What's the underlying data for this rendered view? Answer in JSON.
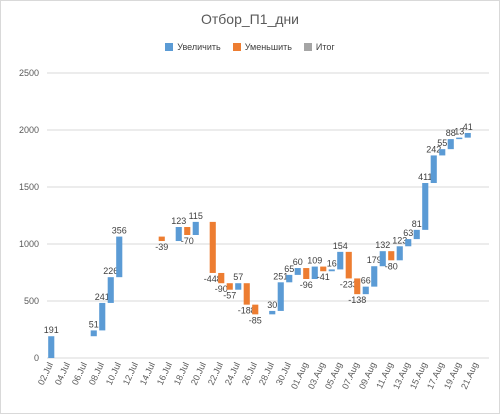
{
  "chart_data": {
    "type": "bar",
    "title": "Отбор_П1_дни",
    "legend": [
      {
        "name": "Увеличить",
        "color": "#5b9bd5"
      },
      {
        "name": "Уменьшить",
        "color": "#ed7d31"
      },
      {
        "name": "Итог",
        "color": "#a5a5a5"
      }
    ],
    "ylim": [
      0,
      2500
    ],
    "yticks": [
      "0",
      "500",
      "1000",
      "1500",
      "2000",
      "2500"
    ],
    "xticks": [
      "02.Jul",
      "04.Jul",
      "06.Jul",
      "08.Jul",
      "10.Jul",
      "12.Jul",
      "14.Jul",
      "16.Jul",
      "18.Jul",
      "20.Jul",
      "22.Jul",
      "24.Jul",
      "26.Jul",
      "28.Jul",
      "30.Jul",
      "01.Aug",
      "03.Aug",
      "05.Aug",
      "07.Aug",
      "09.Aug",
      "11.Aug",
      "13.Aug",
      "15.Aug",
      "17.Aug",
      "19.Aug",
      "21.Aug"
    ],
    "grid": true,
    "legend_position": "top",
    "steps": [
      {
        "x": 0,
        "value": 191,
        "label": "191"
      },
      {
        "x": 5.0,
        "value": 51,
        "label": "51"
      },
      {
        "x": 6.0,
        "value": 241,
        "label": "241"
      },
      {
        "x": 7.0,
        "value": 226,
        "label": "226"
      },
      {
        "x": 8.0,
        "value": 356,
        "label": "356"
      },
      {
        "x": 13.0,
        "value": -39,
        "label": "-39"
      },
      {
        "x": 15.0,
        "value": 123,
        "label": "123"
      },
      {
        "x": 16.0,
        "value": -70,
        "label": "-70"
      },
      {
        "x": 17.0,
        "value": 115,
        "label": "115"
      },
      {
        "x": 19.0,
        "value": -448,
        "label": "-448"
      },
      {
        "x": 20.0,
        "value": -90,
        "label": "-90"
      },
      {
        "x": 21.0,
        "value": -57,
        "label": "-57"
      },
      {
        "x": 22.0,
        "value": 57,
        "label": "57"
      },
      {
        "x": 23.0,
        "value": -188,
        "label": "-188"
      },
      {
        "x": 24.0,
        "value": -85,
        "label": "-85"
      },
      {
        "x": 26.0,
        "value": 30,
        "label": "30"
      },
      {
        "x": 27.0,
        "value": 251,
        "label": "251"
      },
      {
        "x": 28.0,
        "value": 65,
        "label": "65"
      },
      {
        "x": 29.0,
        "value": 60,
        "label": "60"
      },
      {
        "x": 30.0,
        "value": -96,
        "label": "-96"
      },
      {
        "x": 31.0,
        "value": 109,
        "label": "109"
      },
      {
        "x": 32.0,
        "value": -41,
        "label": "-41"
      },
      {
        "x": 33.0,
        "value": 16,
        "label": "16"
      },
      {
        "x": 34.0,
        "value": 154,
        "label": "154"
      },
      {
        "x": 35.0,
        "value": -233,
        "label": "-233"
      },
      {
        "x": 36.0,
        "value": -138,
        "label": "-138"
      },
      {
        "x": 37.0,
        "value": 66,
        "label": "66"
      },
      {
        "x": 38.0,
        "value": 179,
        "label": "179"
      },
      {
        "x": 39.0,
        "value": 132,
        "label": "132"
      },
      {
        "x": 40.0,
        "value": -80,
        "label": "-80"
      },
      {
        "x": 41.0,
        "value": 123,
        "label": "123"
      },
      {
        "x": 42.0,
        "value": 63,
        "label": "63"
      },
      {
        "x": 43.0,
        "value": 81,
        "label": "81"
      },
      {
        "x": 44.0,
        "value": 411,
        "label": "411"
      },
      {
        "x": 45.0,
        "value": 242,
        "label": "242"
      },
      {
        "x": 46.0,
        "value": 55,
        "label": "55"
      },
      {
        "x": 47.0,
        "value": 88,
        "label": "88"
      },
      {
        "x": 48.0,
        "value": 13,
        "label": "13"
      },
      {
        "x": 49.0,
        "value": 41,
        "label": "41"
      }
    ]
  }
}
